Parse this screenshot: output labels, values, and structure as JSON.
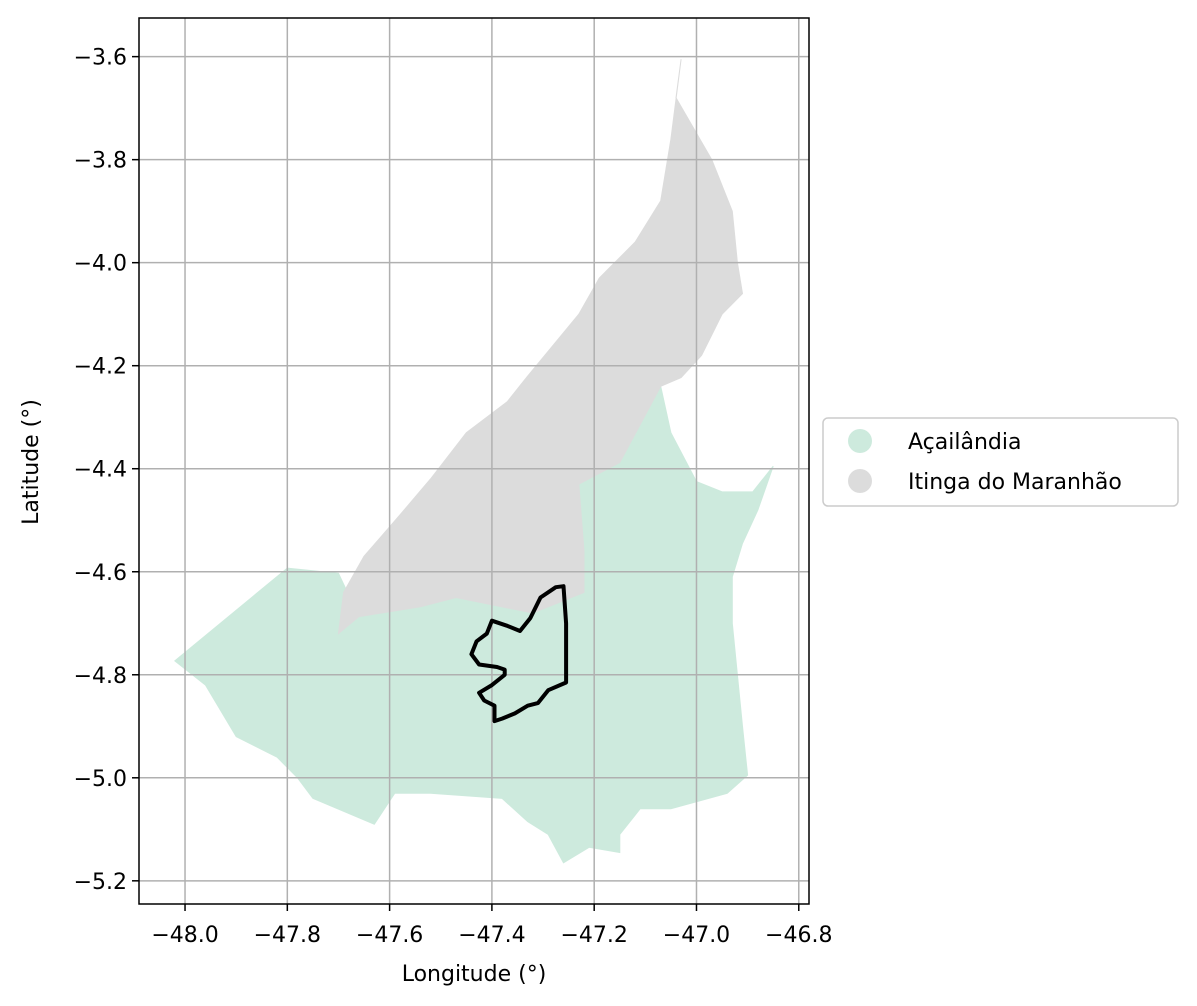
{
  "chart_data": {
    "type": "map",
    "xlabel": "Longitude (°)",
    "ylabel": "Latitude (°)",
    "xlim": [
      -48.09,
      -46.78
    ],
    "ylim": [
      -5.245,
      -3.525
    ],
    "grid": true,
    "legend_placement": "right-center",
    "x_ticks": [
      {
        "value": -48.0,
        "label": "−48.0"
      },
      {
        "value": -47.8,
        "label": "−47.8"
      },
      {
        "value": -47.6,
        "label": "−47.6"
      },
      {
        "value": -47.4,
        "label": "−47.4"
      },
      {
        "value": -47.2,
        "label": "−47.2"
      },
      {
        "value": -47.0,
        "label": "−47.0"
      },
      {
        "value": -46.8,
        "label": "−46.8"
      }
    ],
    "y_ticks": [
      {
        "value": -3.6,
        "label": "−3.6"
      },
      {
        "value": -3.8,
        "label": "−3.8"
      },
      {
        "value": -4.0,
        "label": "−4.0"
      },
      {
        "value": -4.2,
        "label": "−4.2"
      },
      {
        "value": -4.4,
        "label": "−4.4"
      },
      {
        "value": -4.6,
        "label": "−4.6"
      },
      {
        "value": -4.8,
        "label": "−4.8"
      },
      {
        "value": -5.0,
        "label": "−5.0"
      },
      {
        "value": -5.2,
        "label": "−5.2"
      }
    ],
    "regions": [
      {
        "name": "Açailândia",
        "color": "#cdeadd",
        "outline": [
          [
            -48.02,
            -4.773
          ],
          [
            -47.8,
            -4.593
          ],
          [
            -47.7,
            -4.603
          ],
          [
            -47.66,
            -4.687
          ],
          [
            -47.54,
            -4.668
          ],
          [
            -47.47,
            -4.65
          ],
          [
            -47.32,
            -4.68
          ],
          [
            -47.22,
            -4.64
          ],
          [
            -47.22,
            -4.56
          ],
          [
            -47.23,
            -4.43
          ],
          [
            -47.15,
            -4.388
          ],
          [
            -47.07,
            -4.24
          ],
          [
            -47.05,
            -4.33
          ],
          [
            -47.0,
            -4.425
          ],
          [
            -46.95,
            -4.445
          ],
          [
            -46.89,
            -4.445
          ],
          [
            -46.85,
            -4.395
          ],
          [
            -46.88,
            -4.48
          ],
          [
            -46.91,
            -4.545
          ],
          [
            -46.93,
            -4.61
          ],
          [
            -46.93,
            -4.7
          ],
          [
            -46.92,
            -4.8
          ],
          [
            -46.91,
            -4.9
          ],
          [
            -46.9,
            -4.995
          ],
          [
            -46.94,
            -5.03
          ],
          [
            -47.05,
            -5.06
          ],
          [
            -47.11,
            -5.06
          ],
          [
            -47.15,
            -5.11
          ],
          [
            -47.15,
            -5.145
          ],
          [
            -47.21,
            -5.135
          ],
          [
            -47.26,
            -5.165
          ],
          [
            -47.29,
            -5.11
          ],
          [
            -47.33,
            -5.085
          ],
          [
            -47.38,
            -5.04
          ],
          [
            -47.52,
            -5.03
          ],
          [
            -47.59,
            -5.03
          ],
          [
            -47.63,
            -5.09
          ],
          [
            -47.75,
            -5.04
          ],
          [
            -47.78,
            -5.0
          ],
          [
            -47.82,
            -4.96
          ],
          [
            -47.9,
            -4.92
          ],
          [
            -47.96,
            -4.82
          ]
        ]
      },
      {
        "name": "Itinga do Maranhão",
        "color": "#dcdcdc",
        "outline": [
          [
            -47.03,
            -3.605
          ],
          [
            -47.04,
            -3.68
          ],
          [
            -46.97,
            -3.8
          ],
          [
            -46.93,
            -3.9
          ],
          [
            -46.92,
            -4.0
          ],
          [
            -46.91,
            -4.06
          ],
          [
            -46.95,
            -4.1
          ],
          [
            -46.99,
            -4.18
          ],
          [
            -47.03,
            -4.223
          ],
          [
            -47.07,
            -4.24
          ],
          [
            -47.15,
            -4.388
          ],
          [
            -47.23,
            -4.43
          ],
          [
            -47.22,
            -4.56
          ],
          [
            -47.22,
            -4.64
          ],
          [
            -47.32,
            -4.68
          ],
          [
            -47.47,
            -4.65
          ],
          [
            -47.54,
            -4.668
          ],
          [
            -47.66,
            -4.687
          ],
          [
            -47.7,
            -4.72
          ],
          [
            -47.69,
            -4.64
          ],
          [
            -47.65,
            -4.57
          ],
          [
            -47.58,
            -4.49
          ],
          [
            -47.52,
            -4.42
          ],
          [
            -47.45,
            -4.33
          ],
          [
            -47.37,
            -4.27
          ],
          [
            -47.33,
            -4.22
          ],
          [
            -47.23,
            -4.1
          ],
          [
            -47.19,
            -4.03
          ],
          [
            -47.12,
            -3.96
          ],
          [
            -47.07,
            -3.88
          ],
          [
            -47.05,
            -3.76
          ]
        ]
      }
    ],
    "boundary": {
      "color": "#000000",
      "outline": [
        [
          -47.26,
          -4.628
        ],
        [
          -47.255,
          -4.7
        ],
        [
          -47.255,
          -4.815
        ],
        [
          -47.29,
          -4.83
        ],
        [
          -47.31,
          -4.855
        ],
        [
          -47.33,
          -4.86
        ],
        [
          -47.355,
          -4.875
        ],
        [
          -47.38,
          -4.885
        ],
        [
          -47.395,
          -4.89
        ],
        [
          -47.395,
          -4.86
        ],
        [
          -47.415,
          -4.85
        ],
        [
          -47.425,
          -4.835
        ],
        [
          -47.4,
          -4.82
        ],
        [
          -47.375,
          -4.8
        ],
        [
          -47.375,
          -4.79
        ],
        [
          -47.39,
          -4.785
        ],
        [
          -47.425,
          -4.78
        ],
        [
          -47.44,
          -4.76
        ],
        [
          -47.43,
          -4.735
        ],
        [
          -47.41,
          -4.72
        ],
        [
          -47.4,
          -4.695
        ],
        [
          -47.37,
          -4.705
        ],
        [
          -47.345,
          -4.715
        ],
        [
          -47.325,
          -4.69
        ],
        [
          -47.305,
          -4.65
        ],
        [
          -47.275,
          -4.63
        ]
      ]
    }
  }
}
